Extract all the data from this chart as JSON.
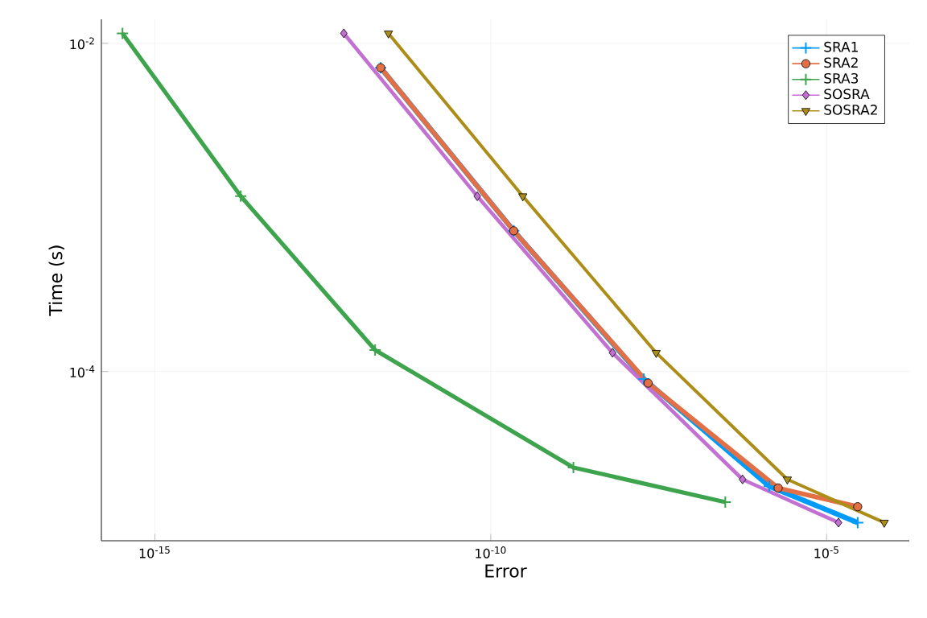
{
  "chart_data": {
    "type": "line",
    "xlabel": "Error",
    "ylabel": "Time (s)",
    "log": "xy",
    "grid": true,
    "legend": "top right",
    "xlim": [
      1.6e-16,
      0.00017
    ],
    "ylim": [
      9.3e-06,
      0.014
    ],
    "xticks": [
      {
        "value": 1e-15,
        "label": "10$^{-15}$"
      },
      {
        "value": 1e-10,
        "label": "10$^{-10}$"
      },
      {
        "value": 1e-05,
        "label": "10$^{-5}$"
      }
    ],
    "yticks": [
      {
        "value": 0.0001,
        "label": "10$^{-4}$"
      },
      {
        "value": 0.01,
        "label": "10$^{-2}$"
      }
    ],
    "series": [
      {
        "name": "SRA1",
        "color": "#009af9",
        "marker": "cross",
        "x": [
          2.3e-12,
          2.2e-10,
          1.9e-08,
          1.4e-06,
          2.9e-05
        ],
        "values": [
          0.0071,
          0.00072,
          9e-05,
          2e-05,
          1.2e-05
        ]
      },
      {
        "name": "SRA2",
        "color": "#e26f46",
        "marker": "circle",
        "x": [
          2.3e-12,
          2.2e-10,
          2.2e-08,
          1.9e-06,
          2.9e-05
        ],
        "values": [
          0.0071,
          0.00072,
          8.5e-05,
          1.95e-05,
          1.5e-05
        ]
      },
      {
        "name": "SRA3",
        "color": "#3da44d",
        "marker": "cross",
        "x": [
          3.3e-16,
          1.9e-14,
          1.9e-12,
          1.7e-09,
          3.1e-07
        ],
        "values": [
          0.0115,
          0.00117,
          0.000135,
          2.6e-05,
          1.6e-05
        ]
      },
      {
        "name": "SOSRA",
        "color": "#c271d2",
        "marker": "diamond",
        "x": [
          6.5e-13,
          6.3e-11,
          6.5e-09,
          5.6e-07,
          1.5e-05
        ],
        "values": [
          0.0115,
          0.00117,
          0.00013,
          2.2e-05,
          1.2e-05
        ]
      },
      {
        "name": "SOSRA2",
        "color": "#ac8d18",
        "marker": "triangle",
        "x": [
          3e-12,
          3e-10,
          2.9e-08,
          2.6e-06,
          7.2e-05
        ],
        "values": [
          0.0115,
          0.00117,
          0.00013,
          2.2e-05,
          1.2e-05
        ]
      }
    ]
  }
}
